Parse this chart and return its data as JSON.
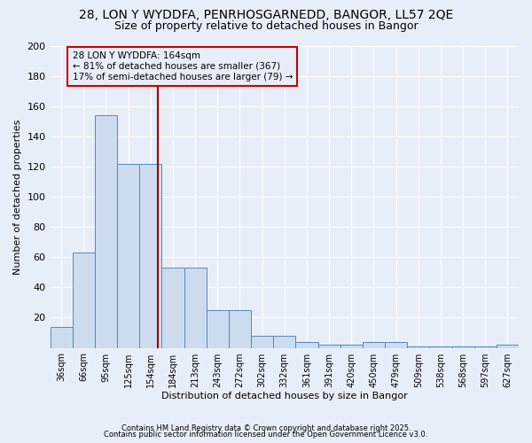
{
  "title1": "28, LON Y WYDDFA, PENRHOSGARNEDD, BANGOR, LL57 2QE",
  "title2": "Size of property relative to detached houses in Bangor",
  "xlabel": "Distribution of detached houses by size in Bangor",
  "ylabel": "Number of detached properties",
  "categories": [
    "36sqm",
    "66sqm",
    "95sqm",
    "125sqm",
    "154sqm",
    "184sqm",
    "213sqm",
    "243sqm",
    "272sqm",
    "302sqm",
    "332sqm",
    "361sqm",
    "391sqm",
    "420sqm",
    "450sqm",
    "479sqm",
    "509sqm",
    "538sqm",
    "568sqm",
    "597sqm",
    "627sqm"
  ],
  "values": [
    14,
    63,
    154,
    122,
    122,
    53,
    53,
    25,
    25,
    8,
    8,
    4,
    2,
    2,
    4,
    4,
    1,
    1,
    1,
    1,
    2
  ],
  "bar_color": "#ccdcee",
  "bar_edge_color": "#5588bb",
  "vline_color": "#990000",
  "annotation_text": "28 LON Y WYDDFA: 164sqm\n← 81% of detached houses are smaller (367)\n17% of semi-detached houses are larger (79) →",
  "annotation_box_color": "#cc0000",
  "ylim": [
    0,
    200
  ],
  "yticks": [
    0,
    20,
    40,
    60,
    80,
    100,
    120,
    140,
    160,
    180,
    200
  ],
  "footer1": "Contains HM Land Registry data © Crown copyright and database right 2025.",
  "footer2": "Contains public sector information licensed under the Open Government Licence v3.0.",
  "bg_color": "#e8eef8",
  "grid_color": "#ffffff",
  "title_fontsize": 10,
  "subtitle_fontsize": 9,
  "axis_fontsize": 8,
  "tick_fontsize": 7,
  "footer_fontsize": 6
}
